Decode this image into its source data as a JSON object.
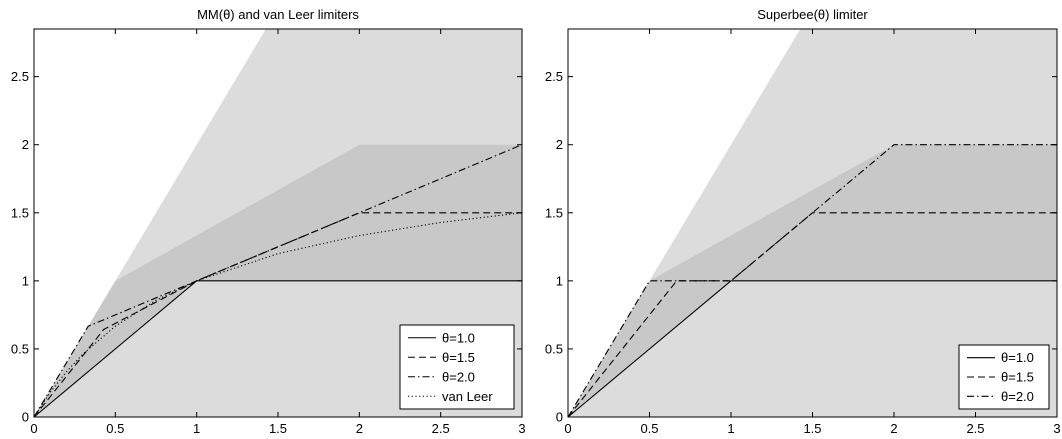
{
  "chart_data": [
    {
      "type": "line",
      "title": "MM(θ) and van Leer limiters",
      "xlabel": "",
      "ylabel": "",
      "xlim": [
        0,
        3
      ],
      "ylim": [
        0,
        2.85
      ],
      "xticks": [
        "0",
        "0.5",
        "1",
        "1.5",
        "2",
        "2.5",
        "3"
      ],
      "yticks": [
        "0",
        "0.5",
        "1",
        "1.5",
        "2",
        "2.5"
      ],
      "legend_position": "bottom-right",
      "background_regions": [
        {
          "color": "#dcdcdc",
          "polygon": [
            [
              0,
              0
            ],
            [
              1.425,
              2.85
            ],
            [
              3,
              2.85
            ],
            [
              3,
              0
            ]
          ]
        },
        {
          "color": "#c8c8c8",
          "polygon": [
            [
              0,
              0
            ],
            [
              0.5,
              1
            ],
            [
              2,
              2
            ],
            [
              3,
              2
            ],
            [
              3,
              1
            ],
            [
              1,
              1
            ]
          ]
        }
      ],
      "series": [
        {
          "name": "θ=1.0",
          "dash": "solid",
          "x": [
            0,
            1,
            3
          ],
          "y": [
            0,
            1,
            1
          ]
        },
        {
          "name": "θ=1.5",
          "dash": "dashed",
          "x": [
            0,
            0.4286,
            1,
            2,
            3
          ],
          "y": [
            0,
            0.6429,
            1,
            1.5,
            1.5
          ]
        },
        {
          "name": "θ=2.0",
          "dash": "dashdot",
          "x": [
            0,
            0.3333,
            1,
            3
          ],
          "y": [
            0,
            0.6667,
            1,
            2
          ]
        },
        {
          "name": "van Leer",
          "dash": "dotted",
          "x": [
            0,
            0.1,
            0.2,
            0.3,
            0.5,
            0.75,
            1,
            1.5,
            2,
            2.5,
            3
          ],
          "y": [
            0,
            0.182,
            0.333,
            0.462,
            0.667,
            0.857,
            1,
            1.2,
            1.333,
            1.429,
            1.5
          ]
        }
      ]
    },
    {
      "type": "line",
      "title": "Superbee(θ) limiter",
      "xlabel": "",
      "ylabel": "",
      "xlim": [
        0,
        3
      ],
      "ylim": [
        0,
        2.85
      ],
      "xticks": [
        "0",
        "0.5",
        "1",
        "1.5",
        "2",
        "2.5",
        "3"
      ],
      "yticks": [
        "0",
        "0.5",
        "1",
        "1.5",
        "2",
        "2.5"
      ],
      "legend_position": "bottom-right",
      "background_regions": [
        {
          "color": "#dcdcdc",
          "polygon": [
            [
              0,
              0
            ],
            [
              1.425,
              2.85
            ],
            [
              3,
              2.85
            ],
            [
              3,
              0
            ]
          ]
        },
        {
          "color": "#c8c8c8",
          "polygon": [
            [
              0,
              0
            ],
            [
              0.5,
              1
            ],
            [
              2,
              2
            ],
            [
              3,
              2
            ],
            [
              3,
              1
            ],
            [
              1,
              1
            ]
          ]
        }
      ],
      "series": [
        {
          "name": "θ=1.0",
          "dash": "solid",
          "x": [
            0,
            1,
            3
          ],
          "y": [
            0,
            1,
            1
          ]
        },
        {
          "name": "θ=1.5",
          "dash": "dashed",
          "x": [
            0,
            0.6667,
            1,
            1.5,
            3
          ],
          "y": [
            0,
            1,
            1,
            1.5,
            1.5
          ]
        },
        {
          "name": "θ=2.0",
          "dash": "dashdot",
          "x": [
            0,
            0.5,
            1,
            2,
            3
          ],
          "y": [
            0,
            1,
            1,
            2,
            2
          ]
        }
      ]
    }
  ]
}
